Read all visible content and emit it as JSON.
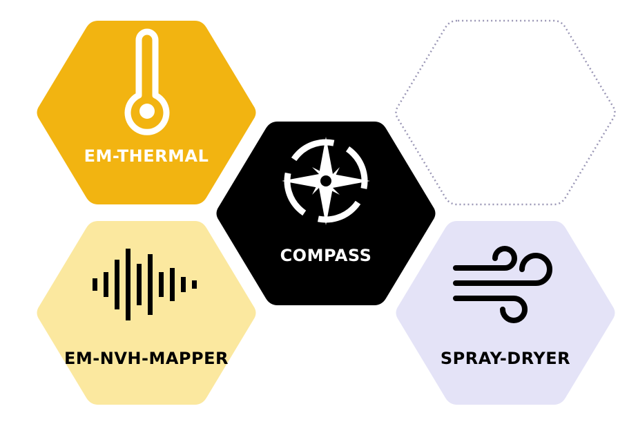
{
  "tiles": {
    "thermal": {
      "label": "EM-THERMAL",
      "icon": "thermometer-icon",
      "color": "#f2b411",
      "text_color": "#ffffff"
    },
    "compass": {
      "label": "COMPASS",
      "icon": "compass-icon",
      "color": "#000000",
      "text_color": "#ffffff"
    },
    "empty": {
      "label": "",
      "icon": "",
      "color": "#9a96b5"
    },
    "nvh": {
      "label": "EM-NVH-MAPPER",
      "icon": "soundwave-icon",
      "color": "#fbe89f",
      "text_color": "#000000"
    },
    "spray": {
      "label": "SPRAY-DRYER",
      "icon": "wind-icon",
      "color": "#e4e3f7",
      "text_color": "#000000"
    }
  }
}
